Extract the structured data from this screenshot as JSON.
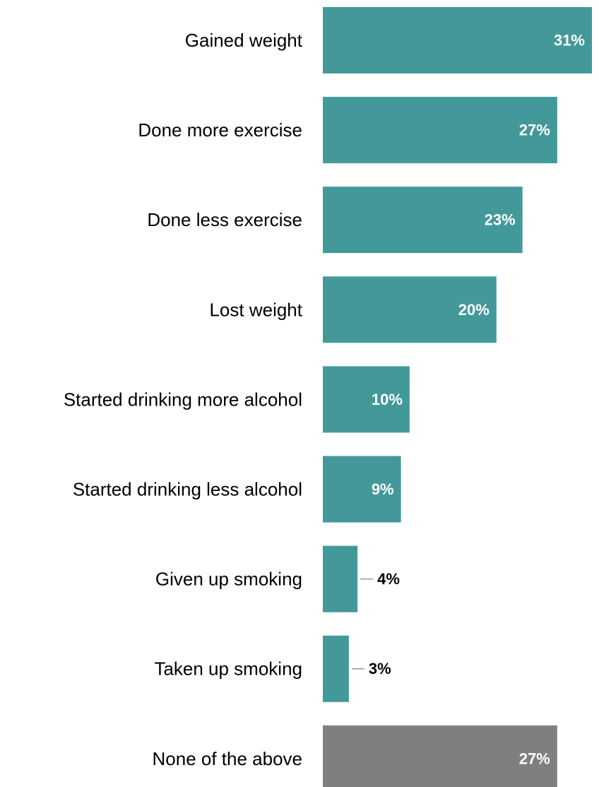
{
  "chart_data": {
    "type": "bar",
    "orientation": "horizontal",
    "categories": [
      "Gained weight",
      "Done more exercise",
      "Done less exercise",
      "Lost weight",
      "Started drinking more alcohol",
      "Started drinking less alcohol",
      "Given up smoking",
      "Taken up smoking",
      "None of the above"
    ],
    "values": [
      31,
      27,
      23,
      20,
      10,
      9,
      4,
      3,
      27
    ],
    "value_labels": [
      "31%",
      "27%",
      "23%",
      "20%",
      "10%",
      "9%",
      "4%",
      "3%",
      "27%"
    ],
    "unit": "%",
    "bar_colors": [
      "#43999a",
      "#43999a",
      "#43999a",
      "#43999a",
      "#43999a",
      "#43999a",
      "#43999a",
      "#43999a",
      "#7f7f7f"
    ],
    "label_inside_color": "#ffffff",
    "label_outside_color": "#000000",
    "title": "",
    "xlabel": "",
    "ylabel": "",
    "xlim": [
      0,
      31
    ],
    "grid": false,
    "legend": "none"
  }
}
